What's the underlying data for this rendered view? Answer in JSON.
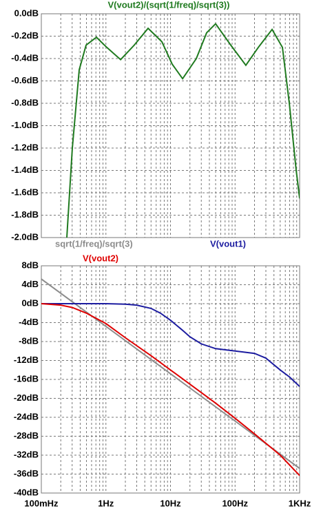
{
  "chart_data": [
    {
      "type": "line",
      "xscale": "log",
      "xlim": [
        0.1,
        1000
      ],
      "ylim": [
        -2,
        0
      ],
      "grid": true,
      "yticks": [
        {
          "value": 0,
          "label": "0.0dB"
        },
        {
          "value": -0.2,
          "label": "-0.2dB"
        },
        {
          "value": -0.4,
          "label": "-0.4dB"
        },
        {
          "value": -0.6,
          "label": "-0.6dB"
        },
        {
          "value": -0.8,
          "label": "-0.8dB"
        },
        {
          "value": -1,
          "label": "-1.0dB"
        },
        {
          "value": -1.2,
          "label": "-1.2dB"
        },
        {
          "value": -1.4,
          "label": "-1.4dB"
        },
        {
          "value": -1.6,
          "label": "-1.6dB"
        },
        {
          "value": -1.8,
          "label": "-1.8dB"
        },
        {
          "value": -2,
          "label": "-2.0dB"
        }
      ],
      "series": [
        {
          "name": "V(vout2)/(sqrt(1/freq)/sqrt(3))",
          "color": "#1f7a1f",
          "x": [
            0.248,
            0.302,
            0.386,
            0.494,
            0.713,
            1.03,
            1.69,
            2.75,
            4.5,
            7.36,
            10.6,
            15.4,
            25.1,
            36.3,
            50,
            85.7,
            147,
            229,
            374,
            541,
            692,
            885,
            1000
          ],
          "values": [
            -2.0,
            -1.2,
            -0.5,
            -0.28,
            -0.21,
            -0.3,
            -0.41,
            -0.28,
            -0.13,
            -0.25,
            -0.45,
            -0.58,
            -0.4,
            -0.17,
            -0.09,
            -0.28,
            -0.46,
            -0.3,
            -0.14,
            -0.3,
            -0.8,
            -1.4,
            -1.65
          ]
        }
      ]
    },
    {
      "type": "line",
      "xscale": "log",
      "xlim": [
        0.1,
        1000
      ],
      "ylim": [
        -40,
        8
      ],
      "grid": true,
      "xticks": [
        {
          "value": 0.1,
          "label": "100mHz"
        },
        {
          "value": 1,
          "label": "1Hz"
        },
        {
          "value": 10,
          "label": "10Hz"
        },
        {
          "value": 100,
          "label": "100Hz"
        },
        {
          "value": 1000,
          "label": "1KHz"
        }
      ],
      "yticks": [
        {
          "value": 8,
          "label": "8dB"
        },
        {
          "value": 4,
          "label": "4dB"
        },
        {
          "value": 0,
          "label": "0dB"
        },
        {
          "value": -4,
          "label": "-4dB"
        },
        {
          "value": -8,
          "label": "-8dB"
        },
        {
          "value": -12,
          "label": "-12dB"
        },
        {
          "value": -16,
          "label": "-16dB"
        },
        {
          "value": -20,
          "label": "-20dB"
        },
        {
          "value": -24,
          "label": "-24dB"
        },
        {
          "value": -28,
          "label": "-28dB"
        },
        {
          "value": -32,
          "label": "-32dB"
        },
        {
          "value": -36,
          "label": "-36dB"
        },
        {
          "value": -40,
          "label": "-40dB"
        }
      ],
      "series": [
        {
          "name": "sqrt(1/freq)/sqrt(3)",
          "color": "#8c8c8c",
          "x": [
            0.1,
            1,
            10,
            100,
            1000
          ],
          "values": [
            5.2,
            -4.8,
            -14.8,
            -24.8,
            -34.8
          ]
        },
        {
          "name": "V(vout1)",
          "color": "#1c1ca0",
          "x": [
            0.1,
            1,
            2,
            3,
            5,
            7,
            10,
            15,
            20,
            30,
            50,
            100,
            200,
            300,
            500,
            700,
            1000
          ],
          "values": [
            0,
            0,
            -0.1,
            -0.3,
            -1,
            -2,
            -3.5,
            -5.5,
            -7,
            -8.5,
            -9.5,
            -10,
            -10.5,
            -11.5,
            -14,
            -15.5,
            -17.5
          ]
        },
        {
          "name": "V(vout2)",
          "color": "#e00000",
          "x": [
            0.1,
            0.2,
            0.3,
            0.5,
            1,
            2,
            5,
            10,
            20,
            50,
            100,
            200,
            500,
            1000
          ],
          "values": [
            0,
            -0.3,
            -0.8,
            -2,
            -4.2,
            -7.2,
            -11,
            -14,
            -17,
            -21,
            -24.2,
            -27.5,
            -32,
            -36.3
          ]
        }
      ]
    }
  ]
}
